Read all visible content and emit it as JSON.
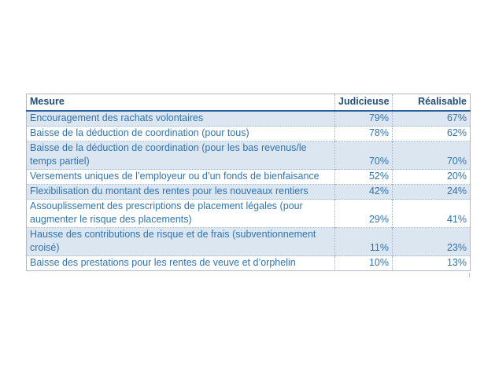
{
  "table": {
    "columns": [
      {
        "key": "mesure",
        "label": "Mesure"
      },
      {
        "key": "judicieuse",
        "label": "Judicieuse"
      },
      {
        "key": "realisable",
        "label": "Réalisable"
      }
    ],
    "rows": [
      {
        "mesure": "Encouragement des rachats volontaires",
        "judicieuse": "79%",
        "realisable": "67%",
        "shaded": true
      },
      {
        "mesure": "Baisse de la déduction de coordination (pour tous)",
        "judicieuse": "78%",
        "realisable": "62%",
        "shaded": false
      },
      {
        "mesure": "Baisse de la déduction de coordination (pour les bas revenus/le temps partiel)",
        "judicieuse": "70%",
        "realisable": "70%",
        "shaded": true
      },
      {
        "mesure": "Versements uniques de l’employeur ou d’un fonds de bienfaisance",
        "judicieuse": "52%",
        "realisable": "20%",
        "shaded": false
      },
      {
        "mesure": "Flexibilisation du montant des rentes pour les nouveaux rentiers",
        "judicieuse": "42%",
        "realisable": "24%",
        "shaded": true
      },
      {
        "mesure": "Assouplissement des prescriptions de placement légales (pour augmenter le risque des placements)",
        "judicieuse": "29%",
        "realisable": "41%",
        "shaded": false
      },
      {
        "mesure": "Hausse des contributions de risque et de frais (subventionnement croisé)",
        "judicieuse": "11%",
        "realisable": "23%",
        "shaded": true
      },
      {
        "mesure": "Baisse des prestations pour les rentes de veuve et d’orphelin",
        "judicieuse": "10%",
        "realisable": "13%",
        "shaded": false
      }
    ]
  },
  "colors": {
    "header_text": "#1F4E79",
    "body_text": "#2E74B5",
    "row_shading": "#DCE6F1",
    "grid_dotted": "#A0B4CB",
    "outer_border": "#AEBACA",
    "header_rule": "#2A5D9E",
    "page_background": "#FFFFFF"
  }
}
